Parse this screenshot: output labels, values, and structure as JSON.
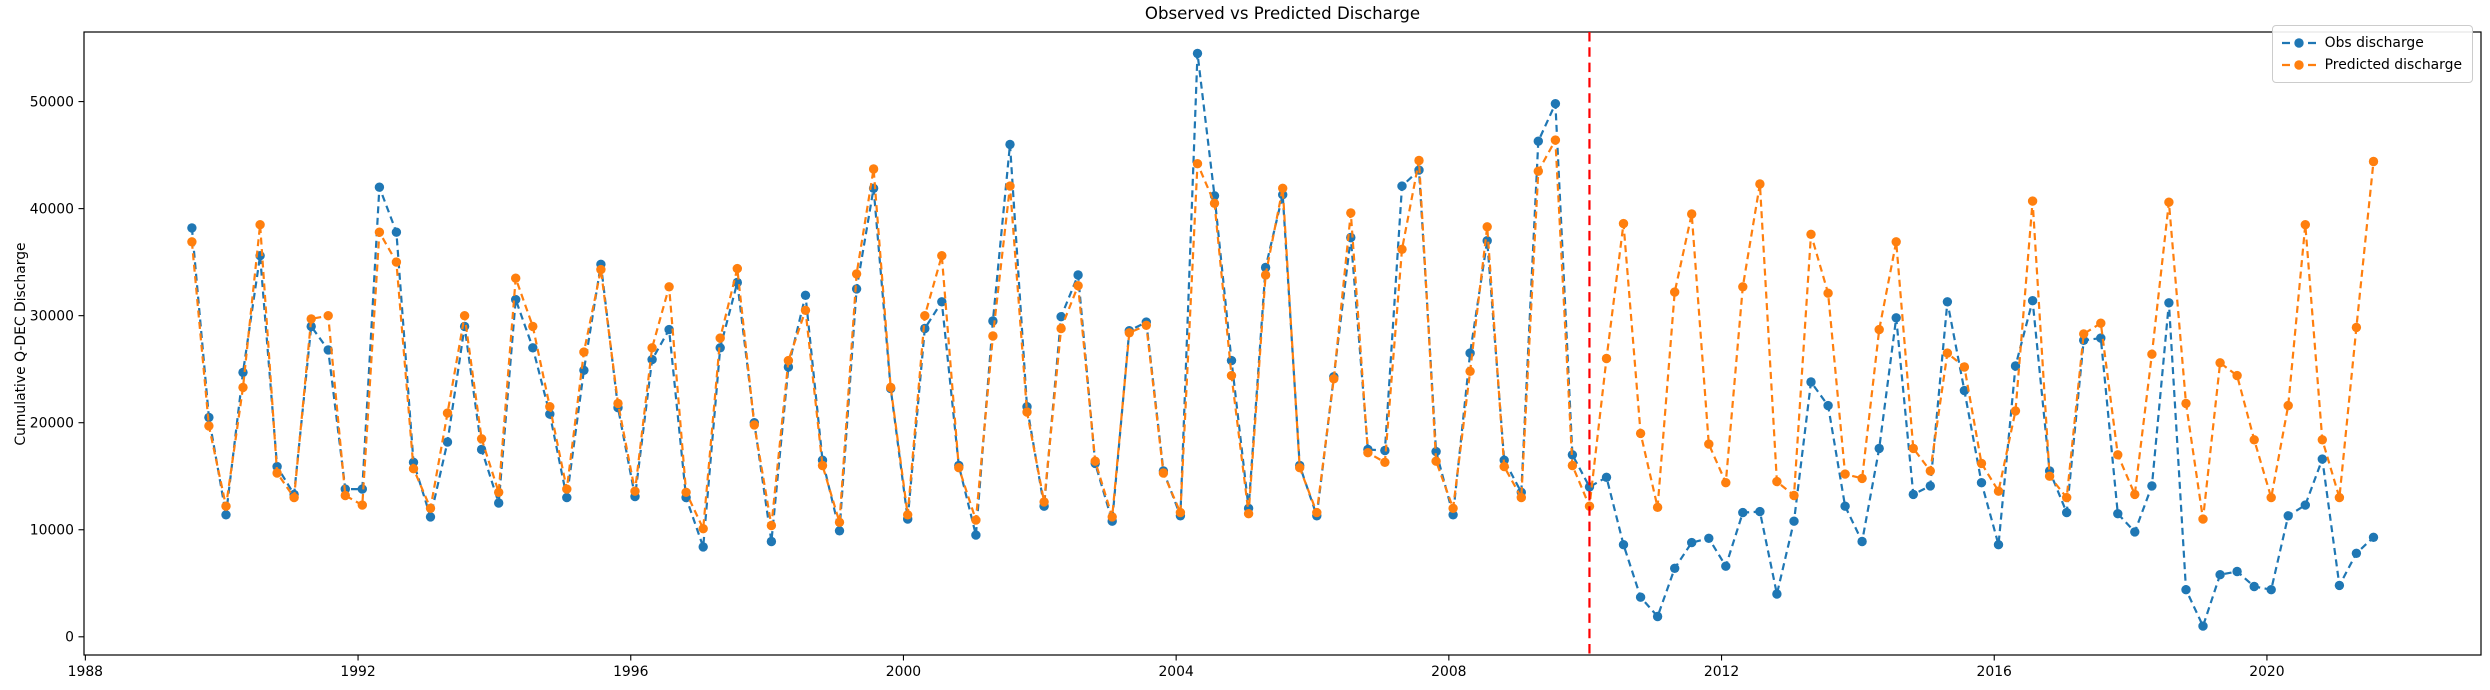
{
  "chart_data": {
    "type": "line",
    "title": "Observed vs Predicted Discharge",
    "ylabel": "Cumulative Q-DEC Discharge",
    "xlabel": "",
    "grid": false,
    "legend_position": "upper right",
    "xlim": [
      1987.98,
      2023.14
    ],
    "ylim": [
      -1700,
      56500
    ],
    "xticks": [
      1988,
      1992,
      1996,
      2000,
      2004,
      2008,
      2012,
      2016,
      2020
    ],
    "yticks": [
      0,
      10000,
      20000,
      30000,
      40000,
      50000
    ],
    "x_start": 1989.5625,
    "x_step": 0.25,
    "vline": {
      "x": 2010.0625,
      "color": "#ff0000",
      "linestyle": "dashed"
    },
    "series": [
      {
        "name": "Obs discharge",
        "color": "#1f77b4",
        "marker": "circle",
        "linestyle": "dashed",
        "values": [
          38200,
          20500,
          11400,
          24700,
          35600,
          15900,
          13300,
          29000,
          26800,
          13800,
          13800,
          42000,
          37800,
          16300,
          11200,
          18200,
          29000,
          17500,
          12500,
          31500,
          27000,
          20800,
          13000,
          24900,
          34800,
          21400,
          13100,
          25900,
          28700,
          13000,
          8400,
          27000,
          33100,
          20000,
          8900,
          25200,
          31900,
          16500,
          9900,
          32500,
          41900,
          23200,
          11000,
          28800,
          31300,
          16000,
          9500,
          29500,
          46000,
          21500,
          12200,
          29900,
          33800,
          16200,
          10800,
          28600,
          29400,
          15500,
          11300,
          54500,
          41200,
          25800,
          12000,
          34500,
          41300,
          16000,
          11300,
          24300,
          37300,
          17500,
          17400,
          42100,
          43600,
          17300,
          11400,
          26500,
          37000,
          16500,
          13500,
          46300,
          49800,
          17000,
          14000,
          14900,
          8600,
          3700,
          1900,
          6400,
          8800,
          9200,
          6600,
          11600,
          11700,
          4000,
          10800,
          23800,
          21600,
          12200,
          8900,
          17600,
          29800,
          13300,
          14100,
          31300,
          23000,
          14400,
          8600,
          25300,
          31400,
          15500,
          11600,
          27700,
          27900,
          11500,
          9800,
          14100,
          31200,
          4400,
          1000,
          5800,
          6100,
          4700,
          4400,
          11300,
          12300,
          16600,
          4800,
          7800,
          9300
        ]
      },
      {
        "name": "Predicted discharge",
        "color": "#ff7f0e",
        "marker": "circle",
        "linestyle": "dashed",
        "values": [
          36900,
          19700,
          12200,
          23300,
          38500,
          15300,
          13000,
          29700,
          30000,
          13200,
          12300,
          37800,
          35000,
          15700,
          12000,
          20900,
          30000,
          18500,
          13500,
          33500,
          29000,
          21500,
          13800,
          26600,
          34300,
          21800,
          13600,
          27000,
          32700,
          13500,
          10100,
          27900,
          34400,
          19800,
          10400,
          25800,
          30500,
          16000,
          10700,
          33900,
          43700,
          23300,
          11400,
          30000,
          35600,
          15800,
          10900,
          28100,
          42100,
          21000,
          12600,
          28800,
          32800,
          16400,
          11200,
          28400,
          29100,
          15300,
          11600,
          44200,
          40500,
          24400,
          11500,
          33800,
          41900,
          15800,
          11600,
          24100,
          39600,
          17200,
          16300,
          36200,
          44500,
          16400,
          12000,
          24800,
          38300,
          15900,
          13000,
          43500,
          46400,
          16000,
          12200,
          26000,
          38600,
          19000,
          12100,
          32200,
          39500,
          18000,
          14400,
          32700,
          42300,
          14500,
          13200,
          37600,
          32100,
          15200,
          14800,
          28700,
          36900,
          17600,
          15500,
          26500,
          25200,
          16200,
          13600,
          21100,
          40700,
          15000,
          13000,
          28300,
          29300,
          17000,
          13300,
          26400,
          40600,
          21800,
          11000,
          25600,
          24400,
          18400,
          13000,
          21600,
          38500,
          18400,
          13000,
          28900,
          44400
        ]
      }
    ]
  }
}
